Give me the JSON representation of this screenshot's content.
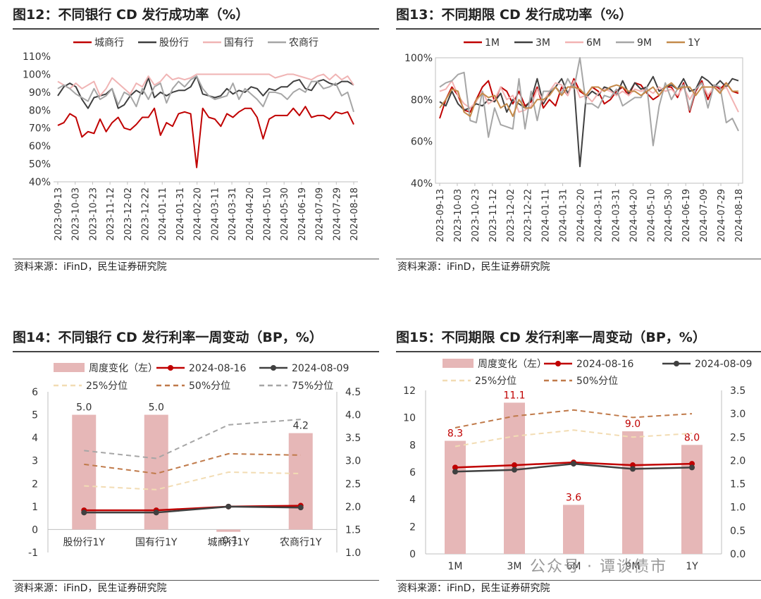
{
  "charts": [
    {
      "title": "图12：不同银行 CD 发行成功率（%）",
      "source": "资料来源：iFinD，民生证券研究院"
    },
    {
      "title": "图13：不同期限 CD 发行成功率（%）",
      "source": "资料来源：iFinD，民生证券研究院"
    },
    {
      "title": "图14：不同银行 CD 发行利率一周变动（BP，%）",
      "source": "资料来源：iFinD，民生证券研究院"
    },
    {
      "title": "图15：不同期限 CD 发行利率一周变动（BP，%）",
      "source": "资料来源：iFinD，民生证券研究院"
    }
  ],
  "watermark": "公众号 · 谭谈债市",
  "chart_data": [
    {
      "type": "line",
      "title": "图12：不同银行 CD 发行成功率（%）",
      "x_tick_labels": [
        "2023-09-13",
        "2023-10-03",
        "2023-10-23",
        "2023-11-12",
        "2023-12-02",
        "2023-12-22",
        "2024-01-11",
        "2024-01-31",
        "2024-02-20",
        "2024-03-11",
        "2024-03-31",
        "2024-04-20",
        "2024-05-10",
        "2024-05-30",
        "2024-06-19",
        "2024-07-09",
        "2024-07-29",
        "2024-08-18"
      ],
      "ylim": [
        40,
        110
      ],
      "y_ticks": [
        40,
        50,
        60,
        70,
        80,
        90,
        100,
        110
      ],
      "y_tick_labels": [
        "40%",
        "50%",
        "60%",
        "70%",
        "80%",
        "90%",
        "100%",
        "110%"
      ],
      "legend": "top",
      "series": [
        {
          "name": "城商行",
          "color": "#c00000",
          "values": [
            71.5,
            73,
            78,
            76,
            65,
            68,
            67,
            75,
            68,
            73,
            76,
            70,
            69,
            72,
            76,
            76,
            81,
            66,
            73,
            71,
            78,
            79,
            78,
            48,
            81,
            76,
            75,
            71,
            78,
            76,
            79,
            81,
            81,
            76,
            64,
            75,
            77,
            77,
            77,
            81,
            77,
            82,
            76,
            77,
            77,
            75,
            79,
            78,
            79,
            72
          ]
        },
        {
          "name": "股份行",
          "color": "#3f3f3f",
          "values": [
            88,
            93,
            95,
            93,
            86,
            81,
            87,
            88,
            89,
            92,
            81,
            83,
            88,
            91,
            89,
            98,
            87,
            90,
            88,
            90,
            91,
            91,
            93,
            99,
            89,
            88,
            87,
            88,
            92,
            89,
            91,
            90,
            93,
            92,
            88,
            92,
            91,
            93,
            93,
            96,
            97,
            92,
            91,
            96,
            97,
            95,
            94,
            96,
            96,
            94
          ]
        },
        {
          "name": "国有行",
          "color": "#f0b4b4",
          "values": [
            96,
            94,
            92,
            95,
            92,
            94,
            96,
            88,
            92,
            98,
            95,
            92,
            89,
            95,
            93,
            99,
            94,
            96,
            100,
            97,
            98,
            97,
            98,
            100,
            100,
            100,
            100,
            100,
            100,
            100,
            100,
            100,
            100,
            100,
            100,
            100,
            98,
            99,
            100,
            100,
            99,
            98,
            97,
            99,
            100,
            97,
            100,
            97,
            99,
            94
          ]
        },
        {
          "name": "农商行",
          "color": "#a6a6a6",
          "values": [
            92,
            94,
            92,
            89,
            87,
            85,
            92,
            86,
            88,
            92,
            83,
            90,
            88,
            82,
            92,
            86,
            93,
            95,
            84,
            92,
            96,
            93,
            97,
            99,
            92,
            88,
            86,
            87,
            88,
            95,
            86,
            92,
            89,
            86,
            82,
            90,
            90,
            89,
            86,
            90,
            92,
            90,
            96,
            96,
            92,
            93,
            95,
            88,
            90,
            79
          ]
        }
      ]
    },
    {
      "type": "line",
      "title": "图13：不同期限 CD 发行成功率（%）",
      "x_tick_labels": [
        "2023-09-13",
        "2023-10-03",
        "2023-10-23",
        "2023-11-12",
        "2023-12-02",
        "2023-12-22",
        "2024-01-11",
        "2024-01-31",
        "2024-02-20",
        "2024-03-11",
        "2024-03-31",
        "2024-04-20",
        "2024-05-10",
        "2024-05-30",
        "2024-06-19",
        "2024-07-09",
        "2024-07-29",
        "2024-08-18"
      ],
      "ylim": [
        40,
        100
      ],
      "y_ticks": [
        40,
        60,
        80,
        100
      ],
      "y_tick_labels": [
        "40%",
        "60%",
        "80%",
        "100%"
      ],
      "legend": "top",
      "series": [
        {
          "name": "1M",
          "color": "#c00000",
          "values": [
            71,
            80,
            86,
            82,
            75,
            74,
            80,
            86,
            89,
            79,
            86,
            84,
            78,
            84,
            77,
            79,
            86,
            76,
            80,
            77,
            86,
            82,
            90,
            84,
            82,
            86,
            84,
            78,
            80,
            84,
            86,
            82,
            88,
            87,
            83,
            80,
            82,
            86,
            86,
            81,
            88,
            74,
            84,
            89,
            80,
            87,
            85,
            88,
            84,
            83
          ]
        },
        {
          "name": "3M",
          "color": "#404040",
          "values": [
            79,
            77,
            84,
            78,
            75,
            76,
            78,
            77,
            80,
            79,
            83,
            74,
            80,
            78,
            76,
            80,
            90,
            78,
            83,
            86,
            90,
            83,
            88,
            48,
            81,
            84,
            82,
            86,
            85,
            82,
            89,
            83,
            88,
            85,
            86,
            91,
            84,
            86,
            87,
            85,
            90,
            84,
            85,
            91,
            89,
            86,
            89,
            86,
            90,
            89
          ]
        },
        {
          "name": "6M",
          "color": "#f2b3b3",
          "values": [
            84,
            85,
            89,
            82,
            78,
            76,
            79,
            84,
            78,
            80,
            86,
            80,
            82,
            74,
            75,
            77,
            85,
            79,
            84,
            88,
            87,
            82,
            89,
            81,
            82,
            79,
            83,
            85,
            84,
            82,
            84,
            82,
            85,
            84,
            85,
            83,
            86,
            84,
            85,
            82,
            86,
            80,
            85,
            88,
            82,
            86,
            84,
            86,
            80,
            74
          ]
        },
        {
          "name": "9M",
          "color": "#a6a6a6",
          "values": [
            86,
            88,
            89,
            92,
            93,
            70,
            69,
            84,
            62,
            76,
            68,
            67,
            66,
            90,
            66,
            84,
            70,
            84,
            84,
            86,
            83,
            90,
            85,
            100,
            78,
            78,
            76,
            82,
            81,
            85,
            77,
            79,
            81,
            81,
            86,
            58,
            77,
            88,
            80,
            85,
            87,
            75,
            85,
            88,
            76,
            87,
            86,
            69,
            71,
            65
          ]
        },
        {
          "name": "1Y",
          "color": "#c48a4a",
          "values": [
            76,
            80,
            85,
            84,
            74,
            72,
            80,
            83,
            81,
            82,
            76,
            78,
            72,
            80,
            76,
            76,
            80,
            80,
            82,
            86,
            82,
            86,
            86,
            85,
            82,
            86,
            86,
            84,
            86,
            87,
            86,
            84,
            84,
            82,
            84,
            86,
            82,
            86,
            88,
            85,
            86,
            86,
            82,
            86,
            86,
            86,
            83,
            88,
            84,
            84
          ]
        }
      ]
    },
    {
      "type": "bar+line",
      "title": "图14：不同银行 CD 发行利率一周变动（BP，%）",
      "categories": [
        "股份行1Y",
        "国有行1Y",
        "城商行1Y",
        "农商行1Y"
      ],
      "ylim_left": [
        -1,
        6
      ],
      "y_ticks_left": [
        -1,
        0,
        1,
        2,
        3,
        4,
        5,
        6
      ],
      "ylim_right": [
        1.0,
        4.5
      ],
      "y_ticks_right": [
        1.0,
        1.5,
        2.0,
        2.5,
        3.0,
        3.5,
        4.0,
        4.5
      ],
      "legend": "top",
      "series": [
        {
          "name": "周度变化（左）",
          "type": "bar",
          "axis": "left",
          "color": "#e6b7b7",
          "values": [
            5.0,
            5.0,
            -0.1,
            4.2
          ],
          "labels": [
            "5.0",
            "5.0",
            "-0.1",
            "4.2"
          ]
        },
        {
          "name": "2024-08-16",
          "type": "line",
          "axis": "right",
          "color": "#c00000",
          "values": [
            1.92,
            1.92,
            2.0,
            2.02
          ]
        },
        {
          "name": "2024-08-09",
          "type": "line",
          "axis": "right",
          "color": "#404040",
          "values": [
            1.87,
            1.87,
            2.0,
            1.98
          ]
        },
        {
          "name": "25%分位",
          "type": "line",
          "axis": "right",
          "dash": "dashed",
          "color": "#f2dcb3",
          "values": [
            2.45,
            2.37,
            2.75,
            2.72
          ]
        },
        {
          "name": "50%分位",
          "type": "line",
          "axis": "right",
          "dash": "dashed",
          "color": "#c07a4a",
          "values": [
            2.92,
            2.72,
            3.15,
            3.12
          ]
        },
        {
          "name": "75%分位",
          "type": "line",
          "axis": "right",
          "dash": "dashed",
          "color": "#a6a6a6",
          "values": [
            3.22,
            3.05,
            3.78,
            3.9
          ]
        }
      ]
    },
    {
      "type": "bar+line",
      "title": "图15：不同期限 CD 发行利率一周变动（BP，%）",
      "categories": [
        "1M",
        "3M",
        "6M",
        "9M",
        "1Y"
      ],
      "ylim_left": [
        0,
        12
      ],
      "y_ticks_left": [
        0,
        2,
        4,
        6,
        8,
        10,
        12
      ],
      "ylim_right": [
        0.0,
        3.5
      ],
      "y_ticks_right": [
        0.0,
        0.5,
        1.0,
        1.5,
        2.0,
        2.5,
        3.0,
        3.5
      ],
      "legend": "top",
      "series": [
        {
          "name": "周度变化（左）",
          "type": "bar",
          "axis": "left",
          "color": "#e6b7b7",
          "values": [
            8.3,
            11.1,
            3.6,
            9.0,
            8.0
          ],
          "labels": [
            "8.3",
            "11.1",
            "3.6",
            "9.0",
            "8.0"
          ]
        },
        {
          "name": "2024-08-16",
          "type": "line",
          "axis": "right",
          "color": "#c00000",
          "values": [
            1.85,
            1.9,
            1.96,
            1.9,
            1.93
          ]
        },
        {
          "name": "2024-08-09",
          "type": "line",
          "axis": "right",
          "color": "#404040",
          "values": [
            1.76,
            1.8,
            1.93,
            1.82,
            1.85
          ]
        },
        {
          "name": "25%分位",
          "type": "line",
          "axis": "right",
          "dash": "dashed",
          "color": "#f2dcb3",
          "values": [
            2.3,
            2.52,
            2.65,
            2.5,
            2.58
          ]
        },
        {
          "name": "50%分位",
          "type": "line",
          "axis": "right",
          "dash": "dashed",
          "color": "#c07a4a",
          "values": [
            2.7,
            2.95,
            3.08,
            2.92,
            3.0
          ]
        }
      ]
    }
  ]
}
